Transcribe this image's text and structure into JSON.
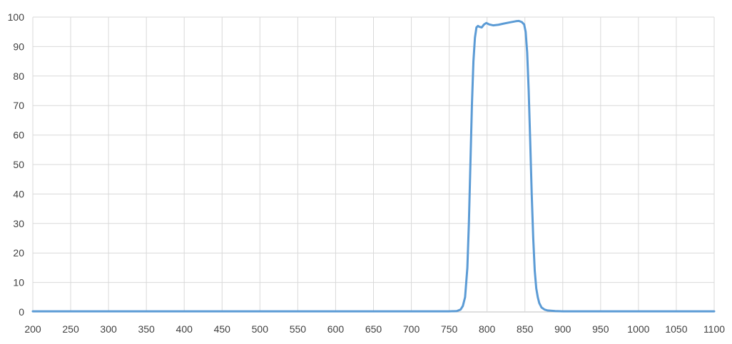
{
  "chart_data": {
    "type": "line",
    "title": "",
    "xlabel": "",
    "ylabel": "",
    "xlim": [
      200,
      1100
    ],
    "ylim": [
      0,
      100
    ],
    "x_ticks": [
      200,
      250,
      300,
      350,
      400,
      450,
      500,
      550,
      600,
      650,
      700,
      750,
      800,
      850,
      900,
      950,
      1000,
      1050,
      1100
    ],
    "y_ticks": [
      0,
      10,
      20,
      30,
      40,
      50,
      60,
      70,
      80,
      90,
      100
    ],
    "grid": true,
    "legend": "none",
    "colors": {
      "line": "#5b9bd5",
      "grid": "#d9d9d9",
      "axis": "#bfbfbf",
      "tick_text": "#404040"
    },
    "series": [
      {
        "color": "#5b9bd5",
        "points": [
          [
            200,
            0.2
          ],
          [
            300,
            0.2
          ],
          [
            400,
            0.2
          ],
          [
            500,
            0.2
          ],
          [
            600,
            0.2
          ],
          [
            700,
            0.2
          ],
          [
            750,
            0.2
          ],
          [
            760,
            0.3
          ],
          [
            765,
            0.8
          ],
          [
            768,
            2
          ],
          [
            771,
            5
          ],
          [
            774,
            15
          ],
          [
            776,
            30
          ],
          [
            778,
            50
          ],
          [
            780,
            70
          ],
          [
            782,
            85
          ],
          [
            784,
            93
          ],
          [
            786,
            96.5
          ],
          [
            788,
            97
          ],
          [
            790,
            96.7
          ],
          [
            793,
            96.5
          ],
          [
            796,
            97.5
          ],
          [
            799,
            98
          ],
          [
            803,
            97.5
          ],
          [
            808,
            97.2
          ],
          [
            815,
            97.4
          ],
          [
            822,
            97.8
          ],
          [
            830,
            98.2
          ],
          [
            838,
            98.6
          ],
          [
            842,
            98.7
          ],
          [
            846,
            98.3
          ],
          [
            849,
            97.5
          ],
          [
            851,
            95
          ],
          [
            853,
            88
          ],
          [
            855,
            75
          ],
          [
            857,
            58
          ],
          [
            859,
            40
          ],
          [
            861,
            25
          ],
          [
            863,
            14
          ],
          [
            865,
            8
          ],
          [
            867,
            5
          ],
          [
            869,
            3
          ],
          [
            872,
            1.5
          ],
          [
            876,
            0.8
          ],
          [
            880,
            0.5
          ],
          [
            890,
            0.3
          ],
          [
            900,
            0.2
          ],
          [
            950,
            0.2
          ],
          [
            1000,
            0.2
          ],
          [
            1050,
            0.2
          ],
          [
            1100,
            0.2
          ]
        ]
      }
    ]
  }
}
